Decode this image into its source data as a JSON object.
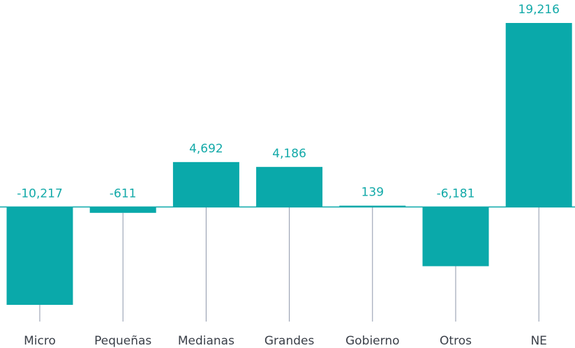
{
  "chart_data": {
    "type": "bar",
    "categories": [
      "Micro",
      "Pequeñas",
      "Medianas",
      "Grandes",
      "Gobierno",
      "Otros",
      "NE"
    ],
    "values": [
      -10217,
      -611,
      4692,
      4186,
      139,
      -6181,
      19216
    ],
    "value_labels": [
      "-10,217",
      "-611",
      "4,692",
      "4,186",
      "139",
      "-6,181",
      "19,216"
    ],
    "color": "#0aa9aa"
  }
}
